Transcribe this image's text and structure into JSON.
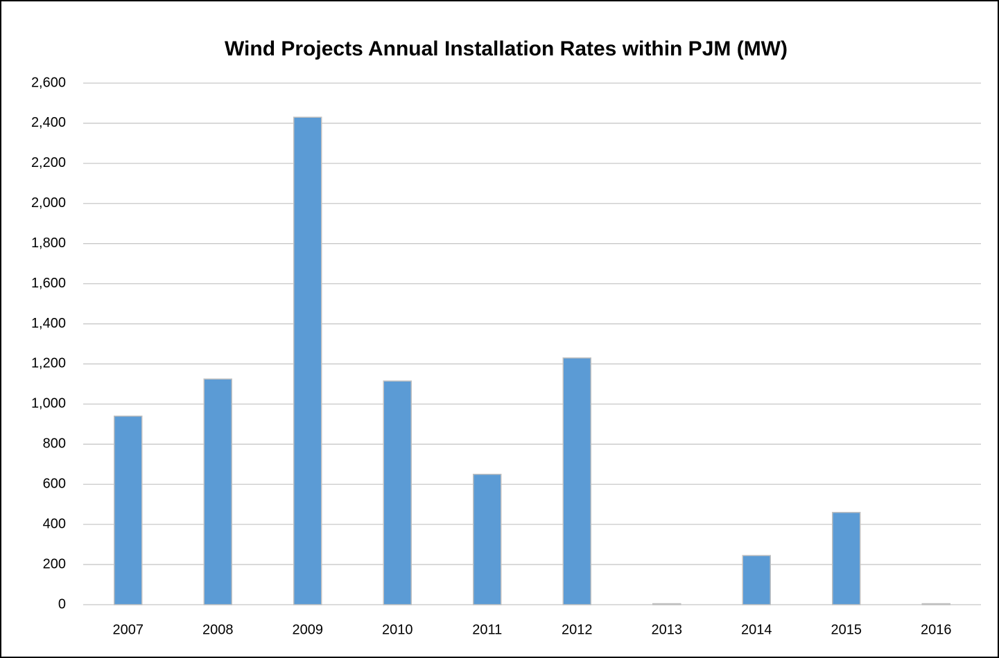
{
  "chart_data": {
    "type": "bar",
    "title": "Wind Projects Annual Installation Rates within PJM (MW)",
    "categories": [
      "2007",
      "2008",
      "2009",
      "2010",
      "2011",
      "2012",
      "2013",
      "2014",
      "2015",
      "2016"
    ],
    "values": [
      940,
      1125,
      2430,
      1115,
      650,
      1230,
      5,
      245,
      460,
      5
    ],
    "color": "#5b9bd5",
    "ylim": [
      0,
      2600
    ],
    "yticks": [
      0,
      200,
      400,
      600,
      800,
      {
        "value": 1000,
        "label": "1,000"
      },
      {
        "value": 1200,
        "label": "1,200"
      },
      {
        "value": 1400,
        "label": "1,400"
      },
      {
        "value": 1600,
        "label": "1,600"
      },
      {
        "value": 1800,
        "label": "1,800"
      },
      {
        "value": 2000,
        "label": "2,000"
      },
      {
        "value": 2200,
        "label": "2,200"
      },
      {
        "value": 2400,
        "label": "2,400"
      },
      {
        "value": 2600,
        "label": "2,600"
      }
    ],
    "grid": true
  }
}
